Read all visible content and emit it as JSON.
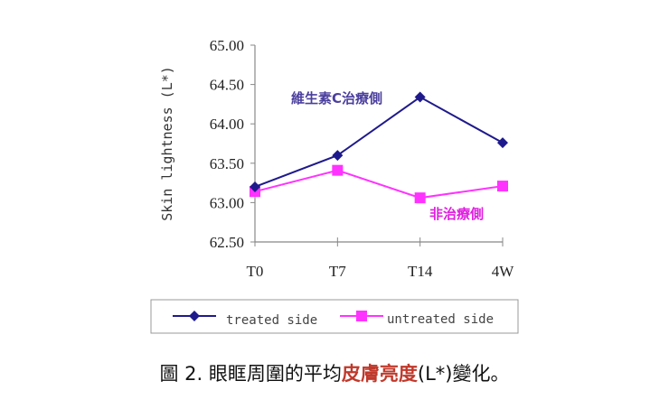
{
  "chart_data": {
    "type": "line",
    "title": "",
    "xlabel": "",
    "ylabel": "Skin lightness (L*)",
    "categories": [
      "T0",
      "T7",
      "T14",
      "4W"
    ],
    "ylim": [
      62.5,
      65.0
    ],
    "yticks": [
      "62.50",
      "63.00",
      "63.50",
      "64.00",
      "64.50",
      "65.00"
    ],
    "grid": false,
    "legend_placement": "bottom",
    "series": [
      {
        "name": "treated side",
        "values": [
          63.2,
          63.6,
          64.34,
          63.76
        ],
        "color": "#1f1a8c",
        "marker": "diamond",
        "annotation": "維生素C治療側",
        "annotation_color": "#4b3f9e"
      },
      {
        "name": "untreated side",
        "values": [
          63.14,
          63.41,
          63.06,
          63.21
        ],
        "color": "#ff33ff",
        "marker": "square",
        "annotation": "非治療側",
        "annotation_color": "#e020e0"
      }
    ]
  },
  "caption": {
    "prefix": "圖 2. 眼眶周圍的平均",
    "highlight": "皮膚亮度",
    "suffix": "(L*)變化。",
    "highlight_color": "#c0392b"
  }
}
